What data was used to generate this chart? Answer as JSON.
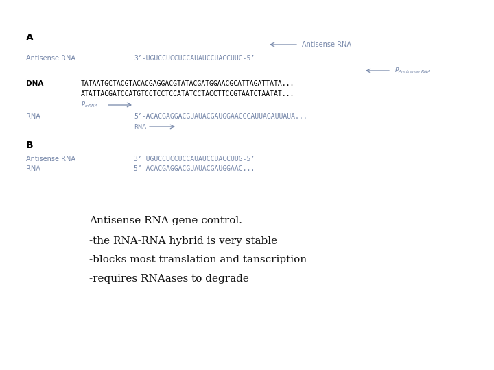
{
  "background_color": "#ffffff",
  "fig_width": 7.2,
  "fig_height": 5.4,
  "dpi": 100,
  "label_color": "#7788aa",
  "dna_color": "#000000",
  "bottom_text_color": "#111111",
  "section_A_label": "A",
  "section_B_label": "B",
  "antisense_rna_label": "Antisense RNA",
  "antisense_rna_seq": "3’-UGUCCUCCUCCAUAUCCUACCUUG-5’",
  "dna_top": "TATAATGCTACGTACACGAGGACGTATACGATGGAACGCATTAGATTATA...",
  "dna_bottom": "ATATTACGATCCATGTCCTCCTCCATATCCTACCTTCCGTAATCTAATAT...",
  "rna_label": "RNA",
  "rna_seq": "5’-ACACGAGGACGUAUACGAUGGAACGCAUUAGAUUAUA...",
  "dna_label": "DNA",
  "antisense_rna_label_b": "Antisense RNA",
  "b_antisense_seq": "3’ UGUCCUCCUCCAUAUCCUACCUUG-5’",
  "b_rna_label": "RNA",
  "b_rna_seq": "5’ ACACGAGGACGUAUACGAUGGAAC...",
  "bottom_lines": [
    "Antisense RNA gene control.",
    "-the RNA-RNA hybrid is very stable",
    "-blocks most translation and tanscription",
    "-requires RNAases to degrade"
  ]
}
